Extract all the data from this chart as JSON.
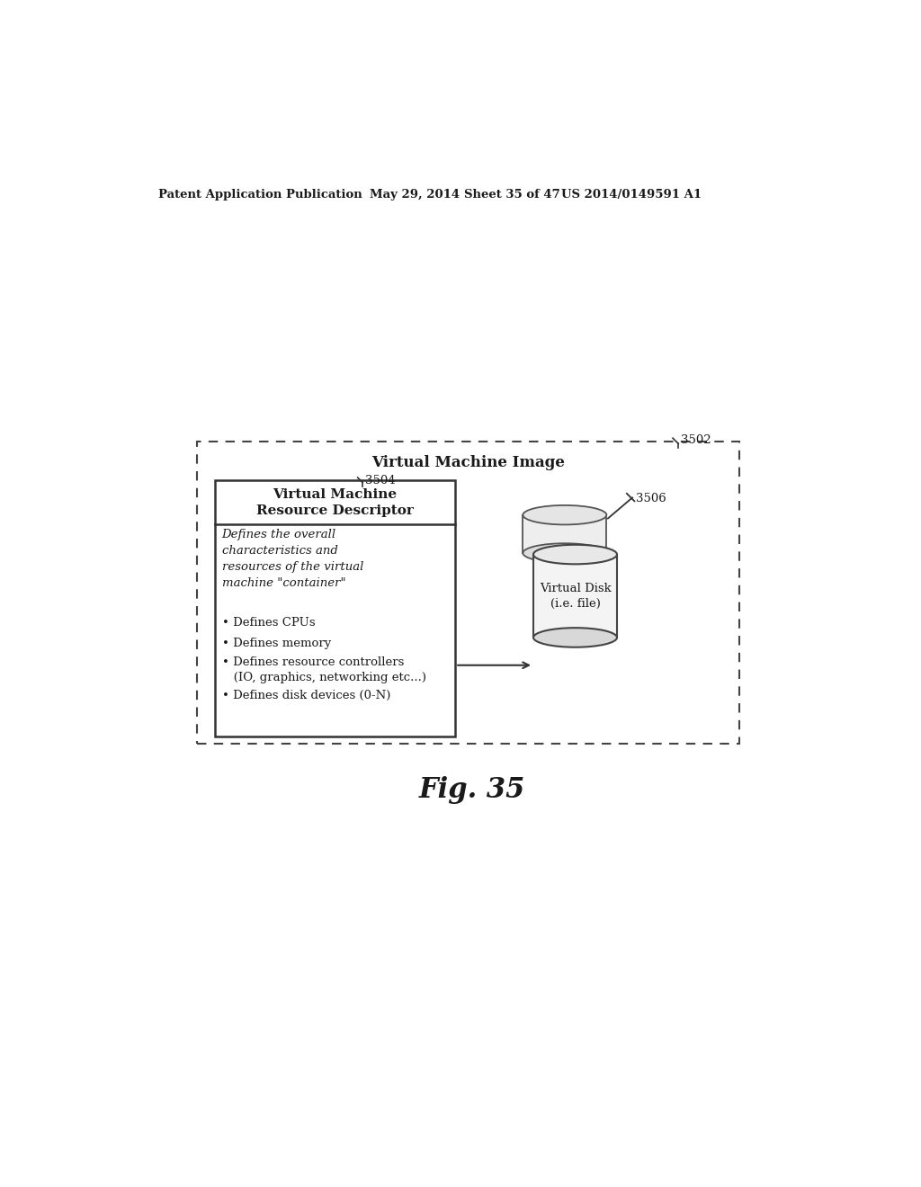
{
  "bg_color": "#ffffff",
  "header_text": "Patent Application Publication",
  "header_date": "May 29, 2014",
  "header_sheet": "Sheet 35 of 47",
  "header_patent": "US 2014/0149591 A1",
  "fig_label": "Fig. 35",
  "outer_box_label": "3502",
  "outer_box_title": "Virtual Machine Image",
  "inner_box_label": "3504",
  "inner_box_title": "Virtual Machine\nResource Descriptor",
  "inner_box_italic_text": "Defines the overall\ncharacteristics and\nresources of the virtual\nmachine \"container\"",
  "inner_box_bullets": [
    "• Defines CPUs",
    "• Defines memory",
    "• Defines resource controllers\n   (IO, graphics, networking etc...)",
    "• Defines disk devices (0-N)"
  ],
  "disk_label": "3506",
  "disk_title": "Virtual Disk\n(i.e. file)"
}
